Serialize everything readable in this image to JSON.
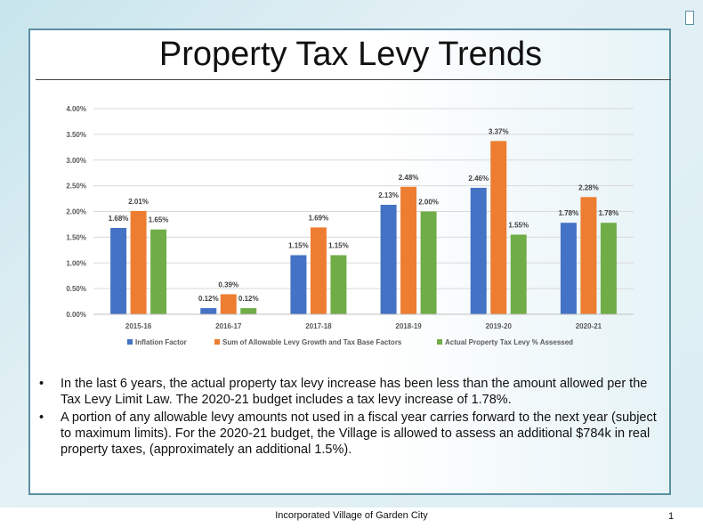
{
  "slide": {
    "title": "Property Tax Levy Trends",
    "bullets": [
      "In the last 6 years, the actual property tax levy increase has been less than the amount allowed per the Tax Levy Limit Law.  The 2020-21 budget includes a tax levy increase of 1.78%.",
      "A portion of any allowable levy amounts not used in a fiscal year carries forward to the next year (subject to maximum limits).  For the 2020-21 budget, the Village is allowed to assess an additional $784k in real property taxes, (approximately an additional 1.5%)."
    ],
    "bullet_glyph": "•",
    "footer": "Incorporated Village of Garden City",
    "page_number": "1"
  },
  "chart_data": {
    "type": "bar",
    "title": "",
    "xlabel": "",
    "ylabel": "",
    "categories": [
      "2015-16",
      "2016-17",
      "2017-18",
      "2018-19",
      "2019-20",
      "2020-21"
    ],
    "series": [
      {
        "name": "Inflation Factor",
        "color": "#4472c4",
        "values": [
          1.68,
          0.12,
          1.15,
          2.13,
          2.46,
          1.78
        ],
        "labels": [
          "1.68%",
          "0.12%",
          "1.15%",
          "2.13%",
          "2.46%",
          "1.78%"
        ]
      },
      {
        "name": "Sum of Allowable Levy Growth and Tax Base Factors",
        "color": "#ed7d31",
        "values": [
          2.01,
          0.39,
          1.69,
          2.48,
          3.37,
          2.28
        ],
        "labels": [
          "2.01%",
          "0.39%",
          "1.69%",
          "2.48%",
          "3.37%",
          "2.28%"
        ]
      },
      {
        "name": "Actual Property Tax Levy % Assessed",
        "color": "#70ad47",
        "values": [
          1.65,
          0.12,
          1.15,
          2.0,
          1.55,
          1.78
        ],
        "labels": [
          "1.65%",
          "0.12%",
          "1.15%",
          "2.00%",
          "1.55%",
          "1.78%"
        ]
      }
    ],
    "ylim": [
      0,
      4
    ],
    "yticks": [
      {
        "value": 0,
        "label": "0.00%"
      },
      {
        "value": 0.5,
        "label": "0.50%"
      },
      {
        "value": 1,
        "label": "1.00%"
      },
      {
        "value": 1.5,
        "label": "1.50%"
      },
      {
        "value": 2,
        "label": "2.00%"
      },
      {
        "value": 2.5,
        "label": "2.50%"
      },
      {
        "value": 3,
        "label": "3.00%"
      },
      {
        "value": 3.5,
        "label": "3.50%"
      },
      {
        "value": 4,
        "label": "4.00%"
      }
    ],
    "grid": true,
    "legend": "bottom"
  }
}
